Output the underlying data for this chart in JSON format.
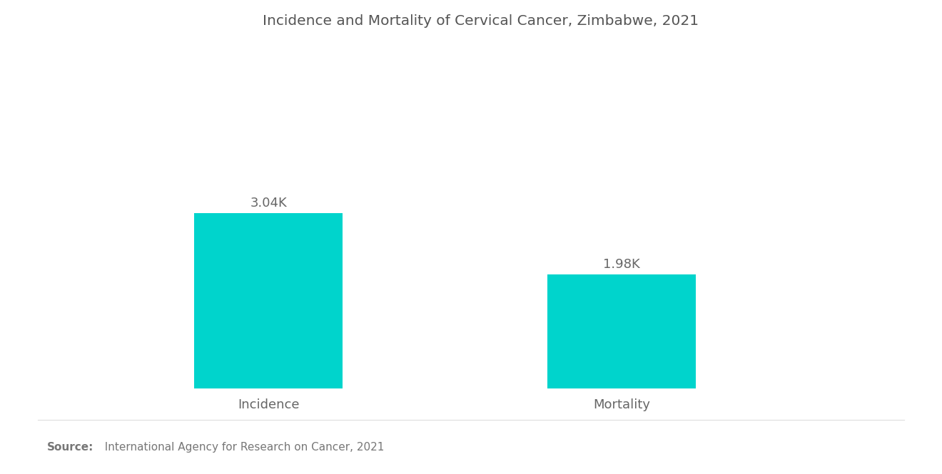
{
  "title": "Incidence and Mortality of Cervical Cancer, Zimbabwe, 2021",
  "categories": [
    "Incidence",
    "Mortality"
  ],
  "values": [
    3040,
    1980
  ],
  "value_labels": [
    "3.04K",
    "1.98K"
  ],
  "bar_color": "#00D4CC",
  "background_color": "#ffffff",
  "title_fontsize": 14.5,
  "label_fontsize": 13,
  "value_fontsize": 13,
  "source_bold": "Source:",
  "source_normal": "  International Agency for Research on Cancer, 2021",
  "source_fontsize": 11,
  "ylim": [
    0,
    6000
  ],
  "bar_width": 0.42,
  "x_positions": [
    1,
    2
  ],
  "xlim": [
    0.4,
    2.8
  ]
}
